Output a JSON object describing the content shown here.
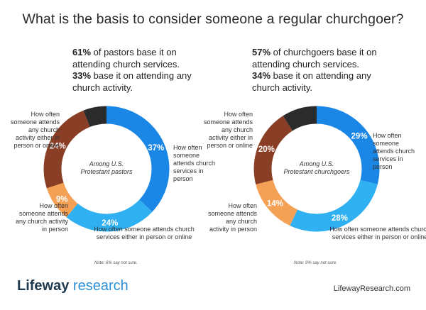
{
  "title": "What is the basis to consider someone a regular churchgoer?",
  "left": {
    "headline": {
      "p1_bold": "61%",
      "p1": " of pastors base it on attending church services.",
      "p2_bold": "33%",
      "p2": " base it on attending any church activity."
    },
    "center_label": "Among U.S. Protestant pastors",
    "labels": {
      "services": "How often someone attends church services in person",
      "either_services": "How often someone attends church services either in person or online",
      "activity_person": "How often someone attends any church activity in person",
      "activity_either": "How often someone attends any church activity either in person or online"
    },
    "note": "Note: 6% say not sure."
  },
  "right": {
    "headline": {
      "p1_bold": "57%",
      "p1": " of churchgoers base it on attending church services.",
      "p2_bold": "34%",
      "p2": " base it on attending any church activity."
    },
    "center_label": "Among U.S. Protestant churchgoers",
    "labels": {
      "services": "How often someone attends church services in person",
      "either_services": "How often someone attends church services either in person or online",
      "activity_person": "How often someone attends any church activity in person",
      "activity_either": "How often someone attends any church activity either in person or online"
    },
    "note": "Note: 9% say not sure."
  },
  "chart_data": [
    {
      "type": "pie",
      "title": "Among U.S. Protestant pastors",
      "slices": [
        {
          "name": "How often someone attends church services in person",
          "value": 37,
          "label": "37%",
          "color": "#1a86e6"
        },
        {
          "name": "How often someone attends church services either in person or online",
          "value": 24,
          "label": "24%",
          "color": "#2fb0f0"
        },
        {
          "name": "How often someone attends any church activity in person",
          "value": 9,
          "label": "9%",
          "color": "#f4a155"
        },
        {
          "name": "How often someone attends any church activity either in person or online",
          "value": 24,
          "label": "24%",
          "color": "#8a3e25"
        },
        {
          "name": "Not sure",
          "value": 6,
          "label": "",
          "color": "#2b2b2b"
        }
      ]
    },
    {
      "type": "pie",
      "title": "Among U.S. Protestant churchgoers",
      "slices": [
        {
          "name": "How often someone attends church services in person",
          "value": 29,
          "label": "29%",
          "color": "#1a86e6"
        },
        {
          "name": "How often someone attends church services either in person or online",
          "value": 28,
          "label": "28%",
          "color": "#2fb0f0"
        },
        {
          "name": "How often someone attends any church activity in person",
          "value": 14,
          "label": "14%",
          "color": "#f4a155"
        },
        {
          "name": "How often someone attends any church activity either in person or online",
          "value": 20,
          "label": "20%",
          "color": "#8a3e25"
        },
        {
          "name": "Not sure",
          "value": 9,
          "label": "",
          "color": "#2b2b2b"
        }
      ]
    }
  ],
  "brand": {
    "part1": "Lifeway",
    "part2": " research"
  },
  "site": "LifewayResearch.com"
}
